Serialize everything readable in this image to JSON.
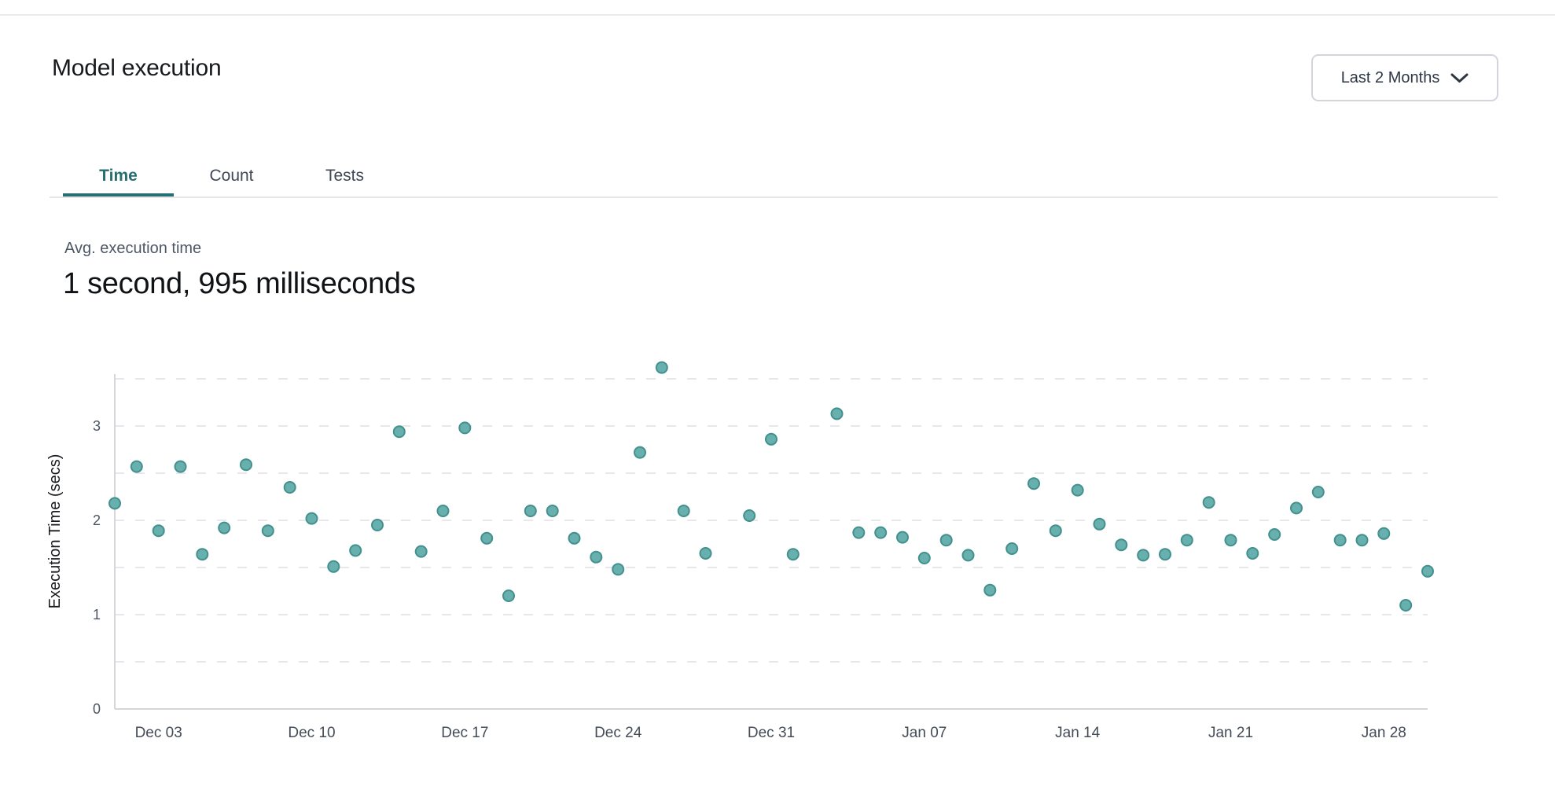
{
  "header": {
    "title": "Model execution",
    "range_selector": {
      "label": "Last 2 Months",
      "icon": "chevron-down-icon"
    }
  },
  "tabs": [
    {
      "label": "Time",
      "active": true
    },
    {
      "label": "Count",
      "active": false
    },
    {
      "label": "Tests",
      "active": false
    }
  ],
  "metric": {
    "label": "Avg. execution time",
    "value": "1 second, 995 milliseconds"
  },
  "colors": {
    "accent_teal": "#276e71",
    "point_fill": "#67b0ae",
    "point_stroke": "#43908e",
    "gridline": "#e8e8ec",
    "axis_line": "#d6d6da",
    "tick_label": "#434c57",
    "y_tick_label": "#4b5563"
  },
  "chart_data": {
    "type": "scatter",
    "title": "",
    "xlabel": "",
    "ylabel": "Execution Time (secs)",
    "ylim": [
      0,
      3.75
    ],
    "x_domain_days": [
      0,
      60
    ],
    "y_ticks": [
      0,
      1,
      2,
      3
    ],
    "gridlines": {
      "show": true,
      "style": "dashed",
      "from": 0.5,
      "to": 3.5,
      "step": 0.5
    },
    "legend": "none",
    "x_ticks": [
      {
        "label": "Dec 03",
        "day": 2
      },
      {
        "label": "Dec 10",
        "day": 9
      },
      {
        "label": "Dec 17",
        "day": 16
      },
      {
        "label": "Dec 24",
        "day": 23
      },
      {
        "label": "Dec 31",
        "day": 30
      },
      {
        "label": "Jan 07",
        "day": 37
      },
      {
        "label": "Jan 14",
        "day": 44
      },
      {
        "label": "Jan 21",
        "day": 51
      },
      {
        "label": "Jan 28",
        "day": 58
      }
    ],
    "points": [
      {
        "date": "Dec 01",
        "day": 0,
        "value": 2.18
      },
      {
        "date": "Dec 02",
        "day": 1,
        "value": 2.57
      },
      {
        "date": "Dec 03",
        "day": 2,
        "value": 1.89
      },
      {
        "date": "Dec 04",
        "day": 3,
        "value": 2.57
      },
      {
        "date": "Dec 05",
        "day": 4,
        "value": 1.64
      },
      {
        "date": "Dec 06",
        "day": 5,
        "value": 1.92
      },
      {
        "date": "Dec 07",
        "day": 6,
        "value": 2.59
      },
      {
        "date": "Dec 08",
        "day": 7,
        "value": 1.89
      },
      {
        "date": "Dec 09",
        "day": 8,
        "value": 2.35
      },
      {
        "date": "Dec 10",
        "day": 9,
        "value": 2.02
      },
      {
        "date": "Dec 11",
        "day": 10,
        "value": 1.51
      },
      {
        "date": "Dec 12",
        "day": 11,
        "value": 1.68
      },
      {
        "date": "Dec 13",
        "day": 12,
        "value": 1.95
      },
      {
        "date": "Dec 14",
        "day": 13,
        "value": 2.94
      },
      {
        "date": "Dec 15",
        "day": 14,
        "value": 1.67
      },
      {
        "date": "Dec 16",
        "day": 15,
        "value": 2.1
      },
      {
        "date": "Dec 17",
        "day": 16,
        "value": 2.98
      },
      {
        "date": "Dec 18",
        "day": 17,
        "value": 1.81
      },
      {
        "date": "Dec 19",
        "day": 18,
        "value": 1.2
      },
      {
        "date": "Dec 20",
        "day": 19,
        "value": 2.1
      },
      {
        "date": "Dec 21",
        "day": 20,
        "value": 2.1
      },
      {
        "date": "Dec 22",
        "day": 21,
        "value": 1.81
      },
      {
        "date": "Dec 23",
        "day": 22,
        "value": 1.61
      },
      {
        "date": "Dec 24",
        "day": 23,
        "value": 1.48
      },
      {
        "date": "Dec 25",
        "day": 24,
        "value": 2.72
      },
      {
        "date": "Dec 26",
        "day": 25,
        "value": 3.62
      },
      {
        "date": "Dec 27",
        "day": 26,
        "value": 2.1
      },
      {
        "date": "Dec 28",
        "day": 27,
        "value": 1.65
      },
      {
        "date": "Dec 30",
        "day": 29,
        "value": 2.05
      },
      {
        "date": "Dec 31",
        "day": 30,
        "value": 2.86
      },
      {
        "date": "Jan 01",
        "day": 31,
        "value": 1.64
      },
      {
        "date": "Jan 03",
        "day": 33,
        "value": 3.13
      },
      {
        "date": "Jan 04",
        "day": 34,
        "value": 1.87
      },
      {
        "date": "Jan 05",
        "day": 35,
        "value": 1.87
      },
      {
        "date": "Jan 06",
        "day": 36,
        "value": 1.82
      },
      {
        "date": "Jan 07",
        "day": 37,
        "value": 1.6
      },
      {
        "date": "Jan 08",
        "day": 38,
        "value": 1.79
      },
      {
        "date": "Jan 09",
        "day": 39,
        "value": 1.63
      },
      {
        "date": "Jan 10",
        "day": 40,
        "value": 1.26
      },
      {
        "date": "Jan 11",
        "day": 41,
        "value": 1.7
      },
      {
        "date": "Jan 12",
        "day": 42,
        "value": 2.39
      },
      {
        "date": "Jan 13",
        "day": 43,
        "value": 1.89
      },
      {
        "date": "Jan 14",
        "day": 44,
        "value": 2.32
      },
      {
        "date": "Jan 15",
        "day": 45,
        "value": 1.96
      },
      {
        "date": "Jan 16",
        "day": 46,
        "value": 1.74
      },
      {
        "date": "Jan 17",
        "day": 47,
        "value": 1.63
      },
      {
        "date": "Jan 18",
        "day": 48,
        "value": 1.64
      },
      {
        "date": "Jan 19",
        "day": 49,
        "value": 1.79
      },
      {
        "date": "Jan 20",
        "day": 50,
        "value": 2.19
      },
      {
        "date": "Jan 21",
        "day": 51,
        "value": 1.79
      },
      {
        "date": "Jan 22",
        "day": 52,
        "value": 1.65
      },
      {
        "date": "Jan 23",
        "day": 53,
        "value": 1.85
      },
      {
        "date": "Jan 24",
        "day": 54,
        "value": 2.13
      },
      {
        "date": "Jan 25",
        "day": 55,
        "value": 2.3
      },
      {
        "date": "Jan 26",
        "day": 56,
        "value": 1.79
      },
      {
        "date": "Jan 27",
        "day": 57,
        "value": 1.79
      },
      {
        "date": "Jan 28",
        "day": 58,
        "value": 1.86
      },
      {
        "date": "Jan 29",
        "day": 59,
        "value": 1.1
      },
      {
        "date": "Jan 30",
        "day": 60,
        "value": 1.46
      }
    ]
  }
}
